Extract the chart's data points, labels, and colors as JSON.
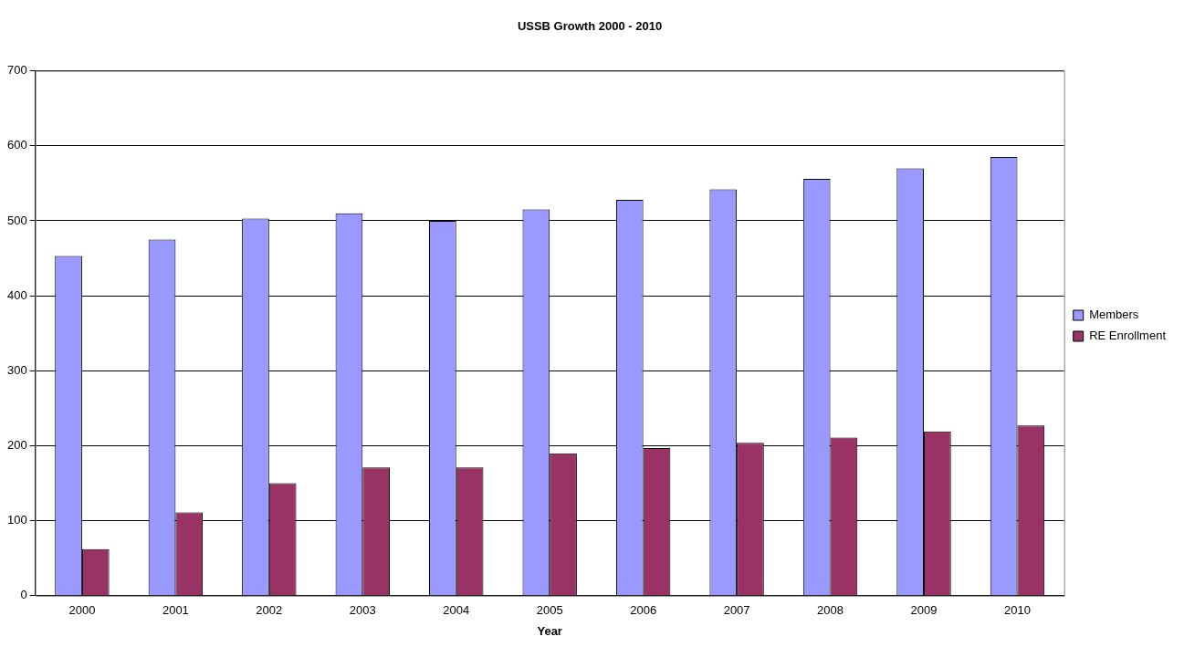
{
  "chart_data": {
    "type": "bar",
    "title": "USSB Growth 2000 - 2010",
    "xlabel": "Year",
    "categories": [
      "2000",
      "2001",
      "2002",
      "2003",
      "2004",
      "2005",
      "2006",
      "2007",
      "2008",
      "2009",
      "2010"
    ],
    "series": [
      {
        "name": "Members",
        "color": "#9999ff",
        "values": [
          453,
          475,
          503,
          510,
          500,
          515,
          528,
          542,
          556,
          570,
          585
        ]
      },
      {
        "name": "RE Enrollment",
        "color": "#993366",
        "values": [
          62,
          111,
          150,
          171,
          171,
          190,
          197,
          204,
          211,
          219,
          227
        ]
      }
    ],
    "ylim": [
      0,
      700
    ],
    "yticks": [
      0,
      100,
      200,
      300,
      400,
      500,
      600,
      700
    ],
    "grid": "y",
    "legend": "right"
  }
}
